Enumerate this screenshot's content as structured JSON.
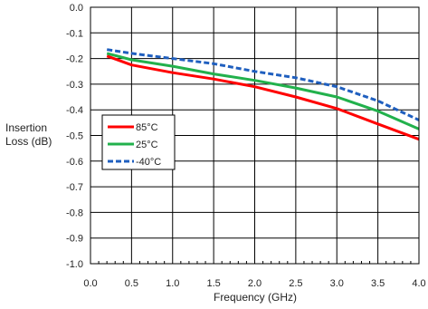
{
  "chart_data": {
    "type": "line",
    "title": "",
    "xlabel": "Frequency (GHz)",
    "ylabel_lines": [
      "Insertion",
      "Loss (dB)"
    ],
    "xlim": [
      0.0,
      4.0
    ],
    "ylim": [
      -1.0,
      0.0
    ],
    "x_ticks": [
      "0.0",
      "0.5",
      "1.0",
      "1.5",
      "2.0",
      "2.5",
      "3.0",
      "3.5",
      "4.0"
    ],
    "y_ticks": [
      "0.0",
      "-0.1",
      "-0.2",
      "-0.3",
      "-0.4",
      "-0.5",
      "-0.6",
      "-0.7",
      "-0.8",
      "-0.9",
      "-1.0"
    ],
    "grid": true,
    "legend_position": "middle-left",
    "series": [
      {
        "name": "85°C",
        "color": "#ff0000",
        "dash": "solid",
        "x": [
          0.2,
          0.5,
          1.0,
          1.5,
          2.0,
          2.5,
          3.0,
          3.5,
          4.0
        ],
        "y": [
          -0.19,
          -0.225,
          -0.255,
          -0.28,
          -0.31,
          -0.35,
          -0.395,
          -0.455,
          -0.515
        ]
      },
      {
        "name": "25°C",
        "color": "#22b14c",
        "dash": "solid",
        "x": [
          0.2,
          0.5,
          1.0,
          1.5,
          2.0,
          2.5,
          3.0,
          3.5,
          4.0
        ],
        "y": [
          -0.18,
          -0.205,
          -0.23,
          -0.26,
          -0.285,
          -0.315,
          -0.35,
          -0.405,
          -0.475
        ]
      },
      {
        "name": "-40°C",
        "color": "#1f5fbf",
        "dash": "dashed",
        "x": [
          0.2,
          0.5,
          1.0,
          1.5,
          2.0,
          2.5,
          3.0,
          3.5,
          4.0
        ],
        "y": [
          -0.165,
          -0.18,
          -0.2,
          -0.22,
          -0.25,
          -0.275,
          -0.31,
          -0.365,
          -0.44
        ]
      }
    ]
  }
}
